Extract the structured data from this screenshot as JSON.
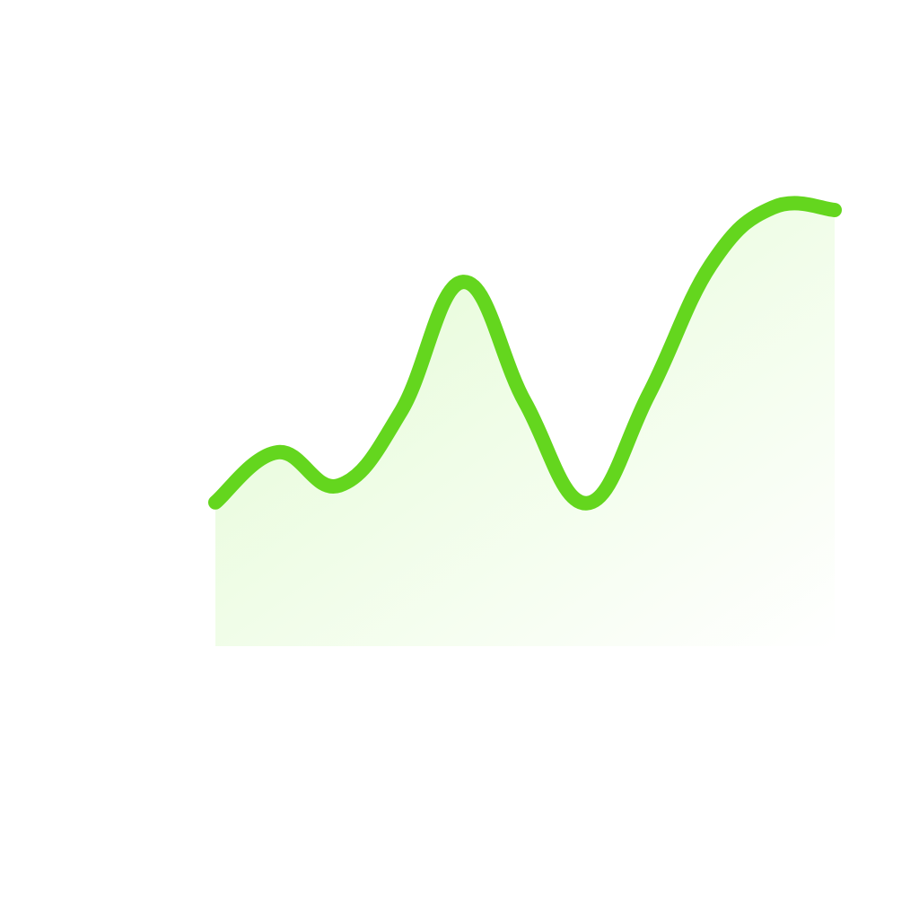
{
  "colors": {
    "line": "#64d61e",
    "fill_top": "#e2fbd2",
    "fill_bottom": "#ffffff",
    "background": "#ffffff"
  },
  "chart_data": {
    "type": "area",
    "axes_visible": false,
    "grid": false,
    "legend": "none",
    "smooth": true,
    "x": [
      0,
      1,
      2,
      3,
      4,
      5,
      6,
      7,
      8,
      9,
      10
    ],
    "values": [
      17.8,
      24.0,
      19.9,
      29.1,
      45.1,
      30.2,
      17.7,
      31.2,
      47.2,
      54.3,
      54.0
    ],
    "xlim": [
      0,
      10
    ],
    "ylim": [
      0,
      60
    ]
  }
}
